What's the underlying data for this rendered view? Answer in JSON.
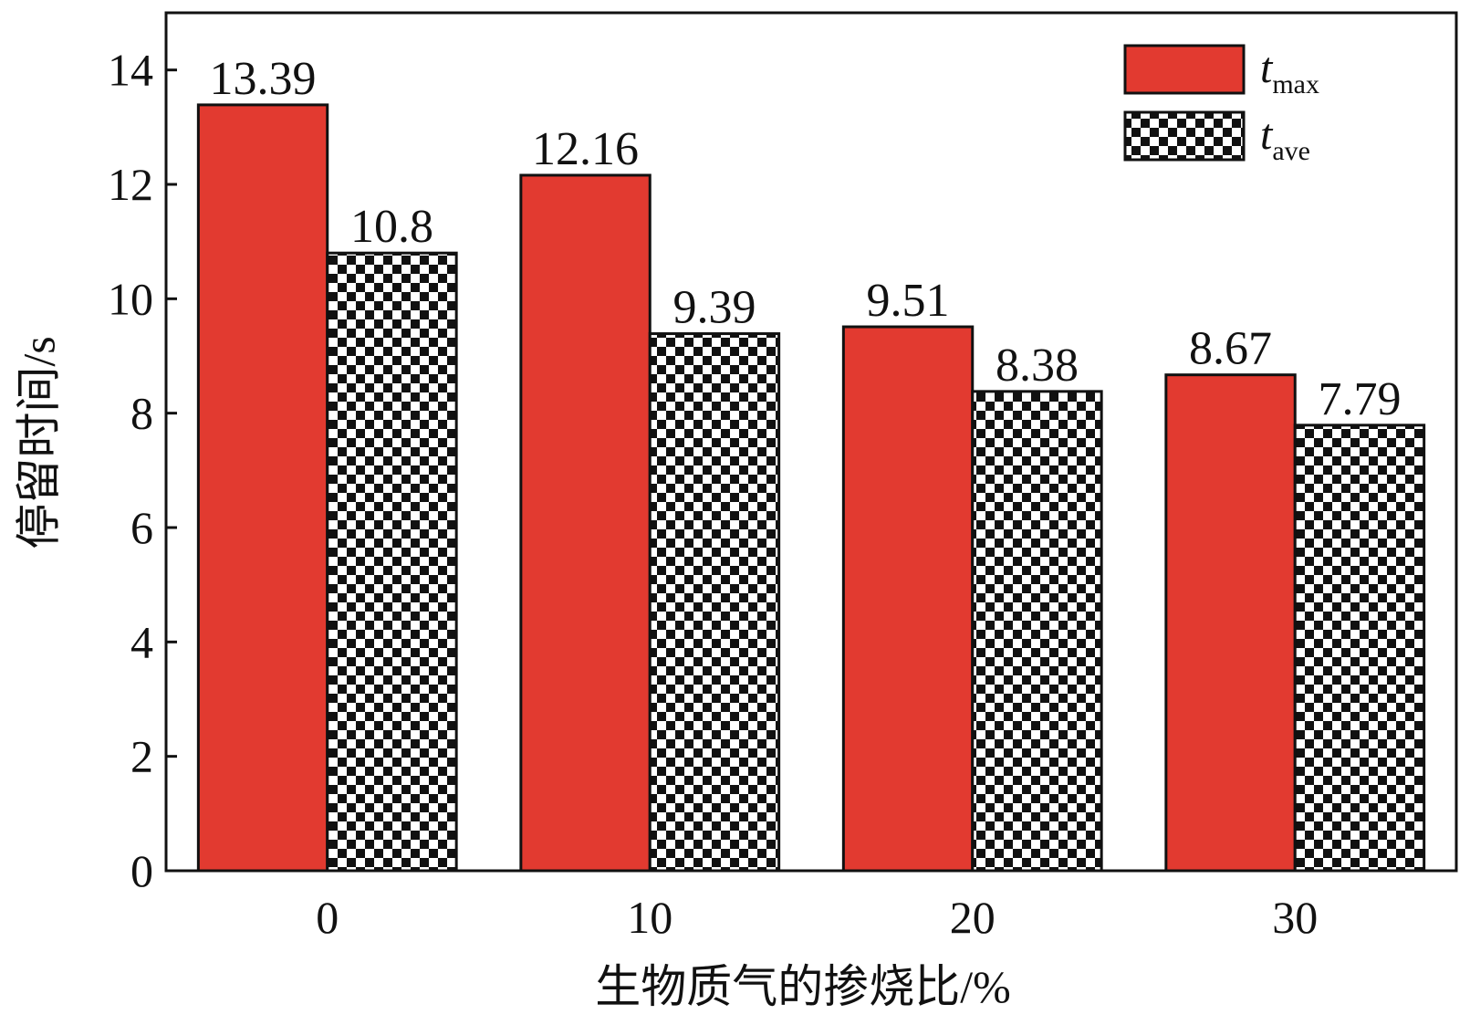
{
  "chart_data": {
    "type": "bar",
    "xlabel": "生物质气的掺烧比/%",
    "ylabel": "停留时间/s",
    "categories": [
      "0",
      "10",
      "20",
      "30"
    ],
    "series": [
      {
        "name": "tmax",
        "color": "#e23a30",
        "values": [
          13.39,
          12.16,
          9.51,
          8.67
        ]
      },
      {
        "name": "tave",
        "color": "checkered",
        "values": [
          10.8,
          9.39,
          8.38,
          7.79
        ]
      }
    ],
    "ylim": [
      0,
      15
    ],
    "yticks": [
      0,
      2,
      4,
      6,
      8,
      10,
      12,
      14
    ],
    "legend": "upper right"
  }
}
